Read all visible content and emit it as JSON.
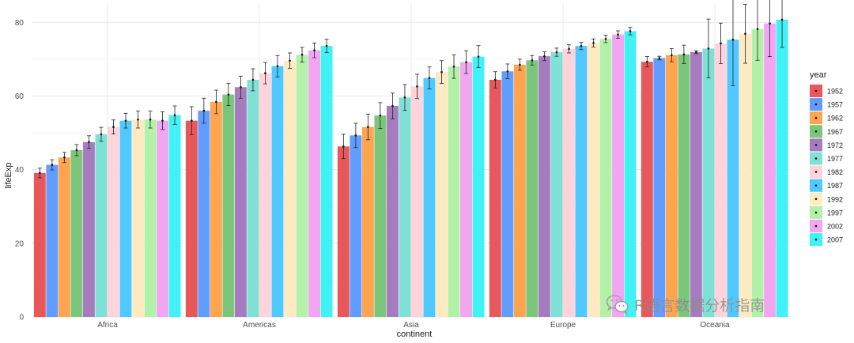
{
  "chart_data": {
    "type": "bar",
    "xlabel": "continent",
    "ylabel": "lifeExp",
    "ylim": [
      0,
      85
    ],
    "yticks": [
      0,
      20,
      40,
      60,
      80
    ],
    "grid": true,
    "legend_title": "year",
    "legend_position": "right",
    "categories": [
      "Africa",
      "Americas",
      "Asia",
      "Europe",
      "Oceania"
    ],
    "series": [
      {
        "name": "1952",
        "color": "#E8585A",
        "values": [
          39.1,
          53.3,
          46.3,
          64.4,
          69.3
        ],
        "error": [
          1.3,
          3.8,
          3.3,
          2.2,
          1.4
        ]
      },
      {
        "name": "1957",
        "color": "#619CFF",
        "values": [
          41.3,
          56.0,
          49.3,
          66.7,
          70.3
        ],
        "error": [
          1.4,
          3.4,
          3.3,
          2.0,
          0.5
        ]
      },
      {
        "name": "1962",
        "color": "#FFA54F",
        "values": [
          43.3,
          58.4,
          51.6,
          68.5,
          71.1
        ],
        "error": [
          1.4,
          3.2,
          3.5,
          1.5,
          1.8
        ]
      },
      {
        "name": "1967",
        "color": "#7BC67B",
        "values": [
          45.3,
          60.4,
          54.7,
          69.7,
          71.3
        ],
        "error": [
          1.5,
          3.0,
          3.5,
          1.3,
          2.5
        ]
      },
      {
        "name": "1972",
        "color": "#A77BC0",
        "values": [
          47.5,
          62.4,
          57.3,
          70.8,
          71.9
        ],
        "error": [
          1.7,
          3.0,
          3.5,
          1.2,
          0.4
        ]
      },
      {
        "name": "1977",
        "color": "#7FE0D6",
        "values": [
          49.6,
          64.4,
          59.6,
          71.9,
          72.9
        ],
        "error": [
          1.9,
          3.0,
          3.5,
          1.1,
          8.0
        ]
      },
      {
        "name": "1982",
        "color": "#FFD3DA",
        "values": [
          51.6,
          66.2,
          62.6,
          72.8,
          74.3
        ],
        "error": [
          1.9,
          2.9,
          3.3,
          1.1,
          5.5
        ]
      },
      {
        "name": "1987",
        "color": "#4FC9FF",
        "values": [
          53.3,
          68.1,
          64.9,
          73.6,
          75.3
        ],
        "error": [
          2.0,
          2.9,
          3.0,
          1.0,
          12.5
        ]
      },
      {
        "name": "1992",
        "color": "#FFEAC2",
        "values": [
          53.6,
          69.6,
          66.5,
          74.4,
          76.9
        ],
        "error": [
          2.3,
          2.1,
          3.1,
          1.1,
          8.0
        ]
      },
      {
        "name": "1997",
        "color": "#B3F0A8",
        "values": [
          53.6,
          71.2,
          68.0,
          75.5,
          78.2
        ],
        "error": [
          2.3,
          2.0,
          3.2,
          1.0,
          8.5
        ]
      },
      {
        "name": "2002",
        "color": "#F2A6F2",
        "values": [
          53.3,
          72.4,
          69.2,
          76.7,
          79.7
        ],
        "error": [
          2.4,
          2.0,
          3.1,
          1.0,
          9.0
        ]
      },
      {
        "name": "2007",
        "color": "#40F2F5",
        "values": [
          54.8,
          73.6,
          70.7,
          77.6,
          80.7
        ],
        "error": [
          2.5,
          1.8,
          3.0,
          1.0,
          7.5
        ]
      }
    ]
  },
  "watermark": {
    "text": "R语言数据分析指南",
    "icon": "wechat-icon"
  }
}
